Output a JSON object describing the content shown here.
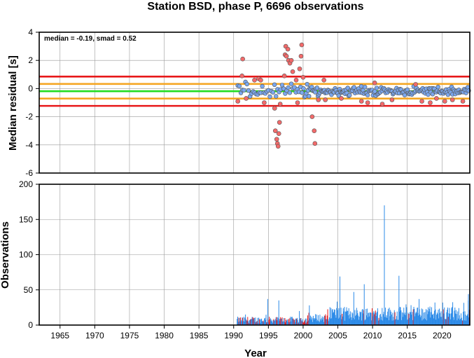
{
  "chart_data": [
    {
      "type": "scatter",
      "title": "Station BSD, phase P, 6696 observations",
      "xlabel": "",
      "ylabel": "Median residual [s]",
      "xlim": [
        1962,
        2024
      ],
      "ylim": [
        -6,
        4
      ],
      "yticks": [
        -6,
        -4,
        -2,
        0,
        2,
        4
      ],
      "grid": true,
      "annotation": "median = -0.19, smad = 0.52",
      "reference_lines": [
        {
          "y": 0.85,
          "color": "#e8191a"
        },
        {
          "y": 0.33,
          "color": "#f5a623"
        },
        {
          "y": -0.19,
          "color": "#22dd22"
        },
        {
          "y": -0.71,
          "color": "#f5a623"
        },
        {
          "y": -1.23,
          "color": "#e8191a"
        }
      ],
      "colors": {
        "normal": "#7aa7ef",
        "outlier": "#f26a6a",
        "edge": "#555555"
      },
      "outliers": [
        {
          "x": 1990.6,
          "y": -0.9
        },
        {
          "x": 1991.2,
          "y": 0.9
        },
        {
          "x": 1991.3,
          "y": 2.1
        },
        {
          "x": 1991.8,
          "y": -0.7
        },
        {
          "x": 1993.0,
          "y": 0.6
        },
        {
          "x": 1993.6,
          "y": 0.7
        },
        {
          "x": 1993.9,
          "y": 0.6
        },
        {
          "x": 1994.4,
          "y": -1.0
        },
        {
          "x": 1995.9,
          "y": -1.4
        },
        {
          "x": 1996.0,
          "y": -3.0
        },
        {
          "x": 1996.2,
          "y": -3.6
        },
        {
          "x": 1996.3,
          "y": -3.9
        },
        {
          "x": 1996.4,
          "y": -4.1
        },
        {
          "x": 1996.5,
          "y": -3.2
        },
        {
          "x": 1996.6,
          "y": -2.4
        },
        {
          "x": 1996.7,
          "y": -1.1
        },
        {
          "x": 1997.3,
          "y": 0.9
        },
        {
          "x": 1997.4,
          "y": 2.4
        },
        {
          "x": 1997.5,
          "y": 3.0
        },
        {
          "x": 1997.6,
          "y": 2.3
        },
        {
          "x": 1997.8,
          "y": 2.8
        },
        {
          "x": 1997.9,
          "y": 2.0
        },
        {
          "x": 1998.1,
          "y": 1.8
        },
        {
          "x": 1998.3,
          "y": 2.0
        },
        {
          "x": 1998.5,
          "y": 1.2
        },
        {
          "x": 1999.0,
          "y": 0.6
        },
        {
          "x": 1999.2,
          "y": -1.0
        },
        {
          "x": 1999.5,
          "y": 1.4
        },
        {
          "x": 1999.7,
          "y": 2.3
        },
        {
          "x": 1999.8,
          "y": 3.1
        },
        {
          "x": 2000.0,
          "y": 0.8
        },
        {
          "x": 2001.3,
          "y": -2.0
        },
        {
          "x": 2001.6,
          "y": -3.0
        },
        {
          "x": 2001.7,
          "y": -3.9
        },
        {
          "x": 2002.2,
          "y": -0.8
        },
        {
          "x": 2003.0,
          "y": 0.6
        },
        {
          "x": 2003.2,
          "y": -0.8
        },
        {
          "x": 2005.5,
          "y": -0.7
        },
        {
          "x": 2008.4,
          "y": -0.9
        },
        {
          "x": 2009.3,
          "y": -1.0
        },
        {
          "x": 2010.3,
          "y": 0.4
        },
        {
          "x": 2011.4,
          "y": -1.1
        },
        {
          "x": 2012.8,
          "y": -0.8
        },
        {
          "x": 2016.2,
          "y": 0.3
        },
        {
          "x": 2017.1,
          "y": -0.9
        },
        {
          "x": 2018.3,
          "y": -1.0
        },
        {
          "x": 2019.2,
          "y": -0.7
        },
        {
          "x": 2020.4,
          "y": -0.9
        },
        {
          "x": 2021.5,
          "y": -0.8
        },
        {
          "x": 2023.0,
          "y": -0.9
        }
      ]
    },
    {
      "type": "bar",
      "xlabel": "Year",
      "ylabel": "Observations",
      "xlim": [
        1962,
        2024
      ],
      "ylim": [
        0,
        200
      ],
      "yticks": [
        0,
        50,
        100,
        150,
        200
      ],
      "xticks": [
        1965,
        1970,
        1975,
        1980,
        1985,
        1990,
        1995,
        2000,
        2005,
        2010,
        2015,
        2020
      ],
      "grid": true,
      "colors": {
        "normal": "#2b8ae8",
        "outlier": "#e8191a"
      },
      "peaks": [
        {
          "x": 1991.7,
          "y": 15
        },
        {
          "x": 1994.9,
          "y": 37
        },
        {
          "x": 1996.5,
          "y": 35
        },
        {
          "x": 2000.9,
          "y": 28
        },
        {
          "x": 2005.3,
          "y": 69
        },
        {
          "x": 2007.3,
          "y": 47
        },
        {
          "x": 2008.8,
          "y": 58
        },
        {
          "x": 2011.7,
          "y": 170
        },
        {
          "x": 2013.8,
          "y": 70
        },
        {
          "x": 2016.7,
          "y": 37
        },
        {
          "x": 2020.1,
          "y": 32
        },
        {
          "x": 2023.8,
          "y": 44
        }
      ]
    }
  ]
}
